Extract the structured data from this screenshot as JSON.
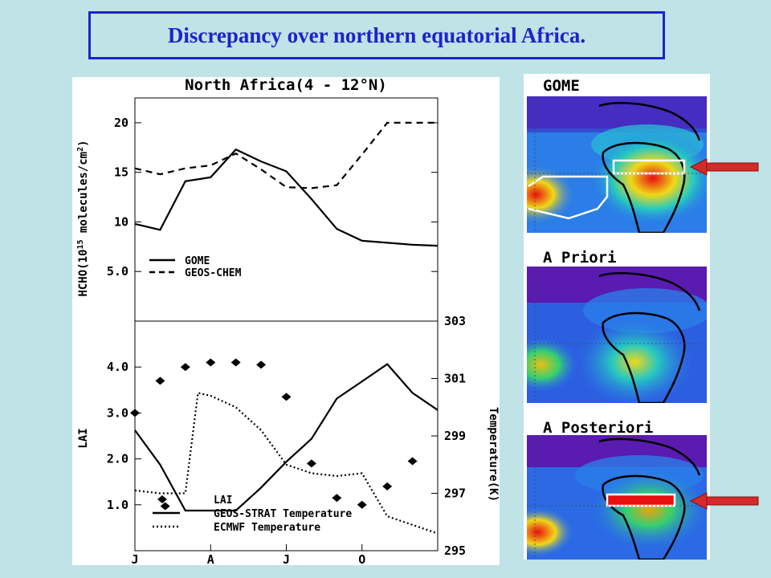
{
  "slide": {
    "title": "Discrepancy over northern equatorial Africa."
  },
  "colors": {
    "title_blue": "#1f22cf",
    "background": "#bfe3e6",
    "arrow_red": "#d42a2a",
    "map_low": "#5a1bb0",
    "map_mid": "#2b7de8",
    "map_high": "#f0d818",
    "map_peak": "#e81010"
  },
  "plot": {
    "title": "North Africa(4 - 12°N)",
    "top_ylabel": "HCHO(10",
    "top_ylabel_exp": "15",
    "top_ylabel_tail": " molecules/cm",
    "top_ylabel_sq": "2",
    "top_ylabel_close": ")",
    "bottom_ylabel": "LAI",
    "right_ylabel": "Temperature(K)",
    "top_legend": [
      "GOME",
      "GEOS-CHEM"
    ],
    "bottom_legend": [
      "LAI",
      "GEOS-STRAT Temperature",
      "ECMWF Temperature"
    ]
  },
  "chart_data": [
    {
      "type": "line",
      "title": "North Africa(4 - 12°N)",
      "ylabel": "HCHO(10^15 molecules/cm^2)",
      "xlim": [
        0.5,
        12.5
      ],
      "ylim": [
        0,
        22.5
      ],
      "yticks": [
        "5.0",
        "10",
        "15",
        "20"
      ],
      "ytick_values": [
        5,
        10,
        15,
        20
      ],
      "x": [
        0.5,
        1.5,
        2.5,
        3.5,
        4.5,
        5.5,
        6.5,
        7.5,
        8.5,
        9.5,
        10.5,
        11.5,
        12.5
      ],
      "series": [
        {
          "name": "GOME",
          "style": "solid",
          "values": [
            9.8,
            9.2,
            14.1,
            14.5,
            17.3,
            16.1,
            15.1,
            12.3,
            9.3,
            8.1,
            7.9,
            7.7,
            7.6
          ]
        },
        {
          "name": "GEOS-CHEM",
          "style": "dashed",
          "values": [
            15.4,
            14.8,
            15.4,
            15.7,
            16.9,
            15.3,
            13.5,
            13.4,
            13.7,
            16.8,
            20.0,
            20.0,
            20.0
          ]
        }
      ],
      "grid": false,
      "legend": "bottom-left"
    },
    {
      "type": "line",
      "ylabel": "LAI",
      "y2label": "Temperature(K)",
      "xlim": [
        0.5,
        12.5
      ],
      "ylim": [
        0,
        5
      ],
      "y2lim": [
        295,
        303
      ],
      "yticks": [
        "1.0",
        "2.0",
        "3.0",
        "4.0"
      ],
      "ytick_values": [
        1,
        2,
        3,
        4
      ],
      "y2ticks": [
        "295",
        "297",
        "299",
        "301",
        "303"
      ],
      "y2tick_values": [
        295,
        297,
        299,
        301,
        303
      ],
      "xticks": [
        "J",
        "A",
        "J",
        "O"
      ],
      "xtick_values": [
        0.5,
        3.5,
        6.5,
        9.5
      ],
      "series": [
        {
          "name": "LAI",
          "style": "markers",
          "axis": "left",
          "x": [
            0.5,
            1.5,
            2.5,
            3.5,
            4.5,
            5.5,
            6.5,
            7.5,
            8.5,
            9.5,
            10.5,
            11.5
          ],
          "values": [
            3.0,
            3.7,
            4.0,
            4.1,
            4.1,
            4.05,
            3.35,
            1.9,
            1.15,
            1.0,
            1.4,
            1.95
          ]
        },
        {
          "name": "LAI",
          "style": "markers",
          "axis": "left",
          "x": [
            1.7
          ],
          "values": [
            0.97
          ]
        },
        {
          "name": "GEOS-STRAT Temperature",
          "style": "solid",
          "axis": "right",
          "x": [
            0.5,
            1.5,
            2.5,
            3.5,
            4.5,
            5.5,
            6.5,
            7.5,
            8.5,
            9.5,
            10.5,
            11.5,
            12.5
          ],
          "values": [
            299.2,
            298.0,
            296.4,
            296.4,
            296.4,
            297.2,
            298.1,
            298.9,
            300.3,
            300.9,
            301.5,
            300.5,
            299.9
          ]
        },
        {
          "name": "ECMWF Temperature",
          "style": "dotted",
          "axis": "right",
          "x": [
            0.5,
            1.5,
            2.5,
            3.0,
            3.5,
            4.5,
            5.5,
            6.5,
            7.5,
            8.5,
            9.5,
            10.5,
            11.5,
            12.5
          ],
          "values": [
            297.1,
            297.0,
            297.0,
            300.5,
            300.4,
            300.0,
            299.2,
            298.0,
            297.7,
            297.6,
            297.7,
            296.2,
            295.9,
            295.6
          ]
        }
      ],
      "grid": false,
      "legend": "bottom-left"
    }
  ],
  "maps": [
    {
      "title": "GOME",
      "highlight_box": true,
      "region_outline": true,
      "arrow": true
    },
    {
      "title": "A Priori",
      "highlight_box": false,
      "region_outline": false,
      "arrow": false
    },
    {
      "title": "A Posteriori",
      "highlight_box": true,
      "region_outline": false,
      "arrow": true
    }
  ]
}
